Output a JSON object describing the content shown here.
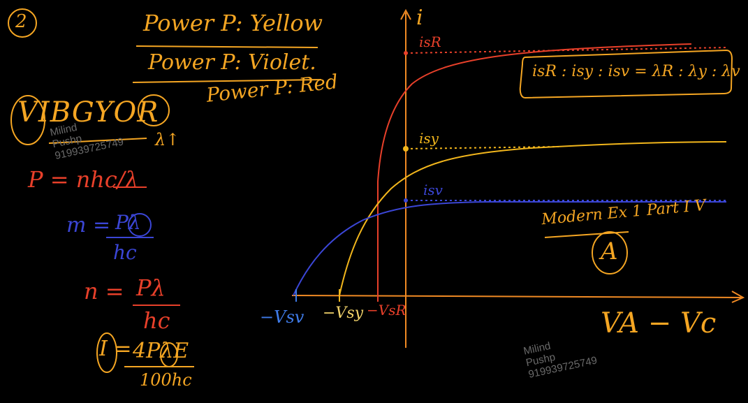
{
  "slide": {
    "number": "2",
    "power_lines": [
      "Power P: Yellow",
      "Power P: Violet.",
      "Power P: Red"
    ],
    "vibgyor": "VIBGYOR",
    "lambda_up": "λ↑",
    "eq1": "P = nhc/λ",
    "eq2_left": "m =",
    "eq2_num": "Pλ",
    "eq2_den": "hc",
    "eq3_left": "n =",
    "eq3_num": "Pλ",
    "eq3_den": "hc",
    "eq4_left": "I =",
    "eq4_num": "4PλE",
    "eq4_den": "100hc",
    "ratio": "isR : isy : isv = λR : λy : λv",
    "ref": "Modern Ex 1 Part I  V",
    "answer": "A"
  },
  "graph": {
    "y_axis_label": "i",
    "x_axis_label": "VA − Vc",
    "curve_labels": {
      "red": "isR",
      "yellow": "isy",
      "violet": "isv"
    },
    "x_marks": [
      "−Vsv",
      "−Vsy",
      "−VsR"
    ],
    "colors": {
      "red": "#e8402a",
      "yellow": "#f2b61c",
      "violet": "#3b46d6",
      "axis": "#f08a24"
    }
  },
  "watermark": {
    "name": "Milind",
    "surname": "Pushp",
    "phone": "919939725749"
  }
}
